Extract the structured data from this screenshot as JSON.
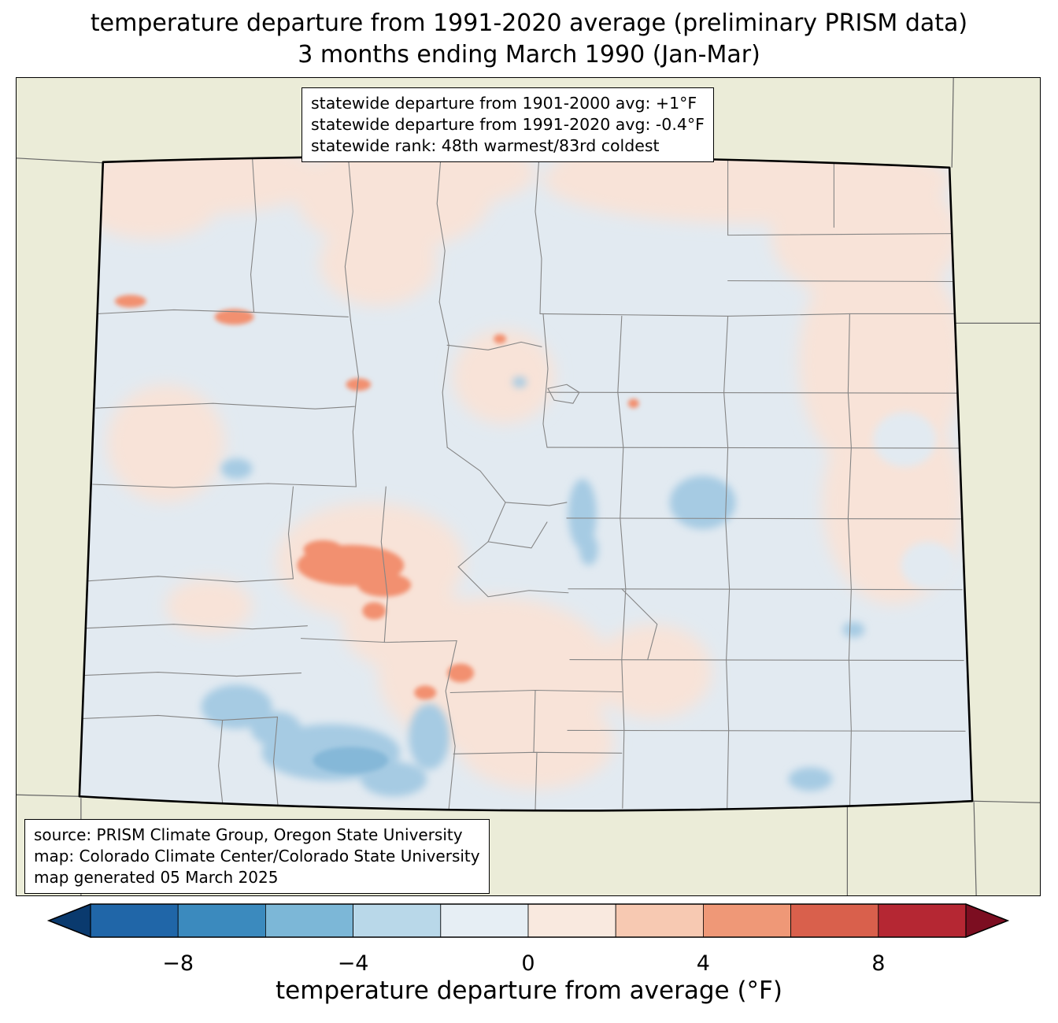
{
  "title": {
    "line1": "temperature departure from 1991-2020 average (preliminary PRISM data)",
    "line2": "3 months ending March 1990 (Jan-Mar)"
  },
  "stats_box": {
    "lines": [
      "statewide departure from 1901-2000 avg: +1°F",
      "statewide departure from 1991-2020 avg: -0.4°F",
      "statewide rank: 48th warmest/83rd coldest"
    ]
  },
  "source_box": {
    "lines": [
      "source: PRISM Climate Group, Oregon State University",
      "map: Colorado Climate Center/Colorado State University",
      "map generated 05 March 2025"
    ]
  },
  "colorbar": {
    "label": "temperature departure from average (°F)",
    "range": [
      -10,
      10
    ],
    "tick_values": [
      -8,
      -4,
      0,
      4,
      8
    ],
    "ticks": [
      "−8",
      "−4",
      "0",
      "4",
      "8"
    ],
    "segments": [
      {
        "from": -10,
        "to": -8,
        "color": "#2066a8"
      },
      {
        "from": -8,
        "to": -6,
        "color": "#3b8abe"
      },
      {
        "from": -6,
        "to": -4,
        "color": "#7cb7d7"
      },
      {
        "from": -4,
        "to": -2,
        "color": "#b9d8e9"
      },
      {
        "from": -2,
        "to": 0,
        "color": "#e6eef4"
      },
      {
        "from": 0,
        "to": 2,
        "color": "#f9e9df"
      },
      {
        "from": 2,
        "to": 4,
        "color": "#f7c9b2"
      },
      {
        "from": 4,
        "to": 6,
        "color": "#ef9877"
      },
      {
        "from": 6,
        "to": 8,
        "color": "#d9604c"
      },
      {
        "from": 8,
        "to": 10,
        "color": "#b52733"
      }
    ],
    "left_arrow_color": "#0a3a6e",
    "right_arrow_color": "#7c0e21"
  },
  "map_colors": {
    "background": "#ebecd8",
    "state_base": "#e2eaf1",
    "pink_patch": "#f8e3d8",
    "salmon_patch": "#f29070",
    "light_blue_patch": "#a6cbe3",
    "deep_blue_patch": "#85b8d8",
    "county_line": "#858585",
    "neighbor_line": "#666666",
    "state_border": "#000000"
  }
}
